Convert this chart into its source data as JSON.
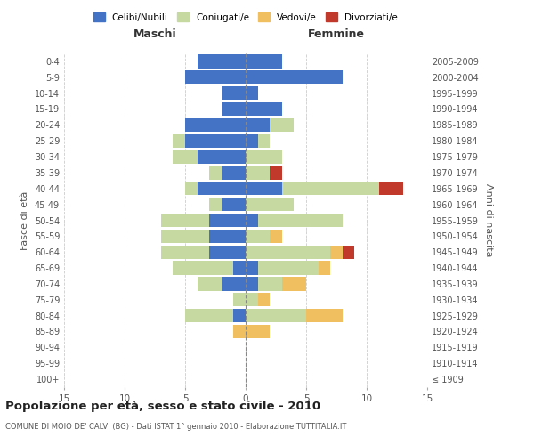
{
  "age_groups": [
    "0-4",
    "5-9",
    "10-14",
    "15-19",
    "20-24",
    "25-29",
    "30-34",
    "35-39",
    "40-44",
    "45-49",
    "50-54",
    "55-59",
    "60-64",
    "65-69",
    "70-74",
    "75-79",
    "80-84",
    "85-89",
    "90-94",
    "95-99",
    "100+"
  ],
  "birth_years": [
    "2005-2009",
    "2000-2004",
    "1995-1999",
    "1990-1994",
    "1985-1989",
    "1980-1984",
    "1975-1979",
    "1970-1974",
    "1965-1969",
    "1960-1964",
    "1955-1959",
    "1950-1954",
    "1945-1949",
    "1940-1944",
    "1935-1939",
    "1930-1934",
    "1925-1929",
    "1920-1924",
    "1915-1919",
    "1910-1914",
    "≤ 1909"
  ],
  "maschi_celibe": [
    4,
    5,
    2,
    2,
    5,
    5,
    4,
    2,
    4,
    2,
    3,
    3,
    3,
    1,
    2,
    0,
    1,
    0,
    0,
    0,
    0
  ],
  "maschi_coniugato": [
    0,
    0,
    0,
    0,
    0,
    1,
    2,
    1,
    1,
    1,
    4,
    4,
    4,
    5,
    2,
    1,
    4,
    0,
    0,
    0,
    0
  ],
  "maschi_vedovo": [
    0,
    0,
    0,
    0,
    0,
    0,
    0,
    0,
    0,
    0,
    0,
    0,
    0,
    0,
    0,
    0,
    0,
    1,
    0,
    0,
    0
  ],
  "maschi_divorziato": [
    0,
    0,
    0,
    0,
    0,
    0,
    0,
    0,
    0,
    0,
    0,
    0,
    0,
    0,
    0,
    0,
    0,
    0,
    0,
    0,
    0
  ],
  "femmine_celibe": [
    3,
    8,
    1,
    3,
    2,
    1,
    0,
    0,
    3,
    0,
    1,
    0,
    0,
    1,
    1,
    0,
    0,
    0,
    0,
    0,
    0
  ],
  "femmine_coniugata": [
    0,
    0,
    0,
    0,
    2,
    1,
    3,
    2,
    8,
    4,
    7,
    2,
    7,
    5,
    2,
    1,
    5,
    0,
    0,
    0,
    0
  ],
  "femmine_vedova": [
    0,
    0,
    0,
    0,
    0,
    0,
    0,
    0,
    0,
    0,
    0,
    1,
    1,
    1,
    2,
    1,
    3,
    2,
    0,
    0,
    0
  ],
  "femmine_divorziata": [
    0,
    0,
    0,
    0,
    0,
    0,
    0,
    1,
    2,
    0,
    0,
    0,
    1,
    0,
    0,
    0,
    0,
    0,
    0,
    0,
    0
  ],
  "color_celibe": "#4472c4",
  "color_coniugato": "#c5d9a0",
  "color_vedovo": "#f0c060",
  "color_divorziato": "#c0392b",
  "title": "Popolazione per età, sesso e stato civile - 2010",
  "subtitle": "COMUNE DI MOIO DE' CALVI (BG) - Dati ISTAT 1° gennaio 2010 - Elaborazione TUTTITALIA.IT",
  "xlabel_left": "Maschi",
  "xlabel_right": "Femmine",
  "ylabel_left": "Fasce di età",
  "ylabel_right": "Anni di nascita",
  "xlim": 15,
  "background_color": "#ffffff",
  "grid_color": "#cccccc"
}
